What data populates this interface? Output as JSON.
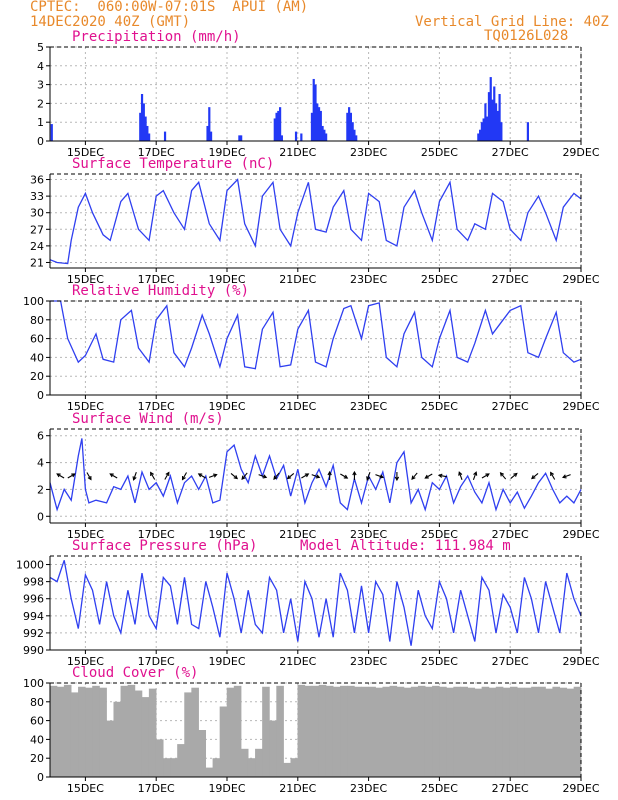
{
  "header": {
    "line1": "CPTEC:  060:00W-07:01S  APUI (AM)",
    "line2": "14DEC2020 40Z (GMT)",
    "right1": "Vertical Grid Line: 40Z",
    "right2": "TQ0126L028"
  },
  "colors": {
    "header": "#e8892b",
    "titles": "#e0118f",
    "series": "#2f3ff0",
    "bars": "#2238f5",
    "cloud": "#a9a9a9",
    "arrows": "#000000"
  },
  "x_axis": {
    "range_days": [
      14.0,
      29.0
    ],
    "tick_labels": [
      "15DEC",
      "17DEC",
      "19DEC",
      "21DEC",
      "23DEC",
      "25DEC",
      "27DEC",
      "29DEC"
    ],
    "tick_days": [
      15,
      17,
      19,
      21,
      23,
      25,
      27,
      29
    ]
  },
  "chart_data": [
    {
      "type": "bar",
      "title": "Precipitation (mm/h)",
      "ylim": [
        0,
        5
      ],
      "yticks": [
        0,
        1,
        2,
        3,
        4,
        5
      ],
      "grid": true,
      "x": [
        14.05,
        16.55,
        16.6,
        16.65,
        16.7,
        16.75,
        16.8,
        17.25,
        18.45,
        18.5,
        18.55,
        19.35,
        19.4,
        20.35,
        20.4,
        20.45,
        20.5,
        20.55,
        20.95,
        21.1,
        21.4,
        21.45,
        21.5,
        21.55,
        21.6,
        21.65,
        21.7,
        21.75,
        21.8,
        22.4,
        22.45,
        22.5,
        22.55,
        22.6,
        22.65,
        26.1,
        26.15,
        26.2,
        26.25,
        26.3,
        26.35,
        26.4,
        26.45,
        26.5,
        26.55,
        26.6,
        26.65,
        26.7,
        26.75,
        27.5
      ],
      "values": [
        0.9,
        1.5,
        2.5,
        2.0,
        1.3,
        0.8,
        0.4,
        0.5,
        0.8,
        1.8,
        0.5,
        0.3,
        0.3,
        1.2,
        1.5,
        1.6,
        1.8,
        0.3,
        0.5,
        0.4,
        1.5,
        3.3,
        3.0,
        2.0,
        1.8,
        1.6,
        0.8,
        0.6,
        0.4,
        1.5,
        1.8,
        1.5,
        1.0,
        0.6,
        0.3,
        0.4,
        0.6,
        1.0,
        1.2,
        2.0,
        1.3,
        2.6,
        3.4,
        2.2,
        2.9,
        2.0,
        1.6,
        2.5,
        1.0,
        1.0
      ]
    },
    {
      "type": "line",
      "title": "Surface Temperature (nC)",
      "ylim": [
        20,
        37
      ],
      "yticks": [
        21,
        24,
        27,
        30,
        33,
        36
      ],
      "grid": true,
      "x": [
        14.0,
        14.2,
        14.5,
        14.6,
        14.8,
        15.0,
        15.2,
        15.5,
        15.7,
        16.0,
        16.2,
        16.5,
        16.8,
        17.0,
        17.2,
        17.5,
        17.8,
        18.0,
        18.2,
        18.5,
        18.8,
        19.0,
        19.3,
        19.5,
        19.8,
        20.0,
        20.3,
        20.5,
        20.8,
        21.0,
        21.3,
        21.5,
        21.8,
        22.0,
        22.3,
        22.5,
        22.8,
        23.0,
        23.3,
        23.5,
        23.8,
        24.0,
        24.3,
        24.5,
        24.8,
        25.0,
        25.3,
        25.5,
        25.8,
        26.0,
        26.3,
        26.5,
        26.8,
        27.0,
        27.3,
        27.5,
        27.8,
        28.0,
        28.3,
        28.5,
        28.8,
        29.0
      ],
      "values": [
        21.5,
        21.0,
        20.8,
        25,
        31,
        33.5,
        30,
        26,
        25,
        32,
        33.5,
        27,
        25,
        33,
        34,
        30,
        27,
        34,
        35.5,
        28,
        25,
        34,
        36,
        28,
        24,
        33,
        35.5,
        27,
        24,
        30,
        35.5,
        27,
        26.5,
        31,
        34,
        27,
        25,
        33.5,
        32,
        25,
        24,
        31,
        34,
        30,
        25,
        32,
        35.5,
        27,
        25,
        28,
        27,
        33.5,
        32,
        27,
        25,
        30,
        33,
        30,
        25,
        31,
        33.5,
        32.5
      ]
    },
    {
      "type": "line",
      "title": "Relative Humidity (%)",
      "ylim": [
        0,
        100
      ],
      "yticks": [
        0,
        20,
        40,
        60,
        80,
        100
      ],
      "grid": true,
      "x": [
        14.0,
        14.3,
        14.5,
        14.8,
        15.0,
        15.3,
        15.5,
        15.8,
        16.0,
        16.3,
        16.5,
        16.8,
        17.0,
        17.3,
        17.5,
        17.8,
        18.0,
        18.3,
        18.5,
        18.8,
        19.0,
        19.3,
        19.5,
        19.8,
        20.0,
        20.3,
        20.5,
        20.8,
        21.0,
        21.3,
        21.5,
        21.8,
        22.0,
        22.3,
        22.5,
        22.8,
        23.0,
        23.3,
        23.5,
        23.8,
        24.0,
        24.3,
        24.5,
        24.8,
        25.0,
        25.3,
        25.5,
        25.8,
        26.0,
        26.3,
        26.5,
        26.8,
        27.0,
        27.3,
        27.5,
        27.8,
        28.0,
        28.3,
        28.5,
        28.8,
        29.0
      ],
      "values": [
        100,
        100,
        60,
        35,
        42,
        65,
        38,
        35,
        80,
        90,
        50,
        35,
        80,
        95,
        45,
        30,
        50,
        85,
        65,
        30,
        60,
        85,
        30,
        28,
        70,
        88,
        30,
        32,
        70,
        90,
        35,
        30,
        60,
        92,
        95,
        60,
        95,
        98,
        40,
        30,
        65,
        88,
        40,
        30,
        60,
        90,
        40,
        35,
        55,
        90,
        65,
        80,
        90,
        95,
        45,
        40,
        60,
        88,
        45,
        35,
        38
      ]
    },
    {
      "type": "line",
      "title": "Surface Wind (m/s)",
      "ylim": [
        -0.5,
        6.5
      ],
      "yticks": [
        0,
        2,
        4,
        6
      ],
      "grid": true,
      "x": [
        14.0,
        14.2,
        14.4,
        14.6,
        14.8,
        14.9,
        15.0,
        15.1,
        15.3,
        15.6,
        15.8,
        16.0,
        16.2,
        16.4,
        16.6,
        16.8,
        17.0,
        17.2,
        17.4,
        17.6,
        17.8,
        18.0,
        18.2,
        18.4,
        18.6,
        18.8,
        19.0,
        19.2,
        19.4,
        19.6,
        19.8,
        20.0,
        20.2,
        20.4,
        20.6,
        20.8,
        21.0,
        21.2,
        21.4,
        21.6,
        21.8,
        22.0,
        22.2,
        22.4,
        22.6,
        22.8,
        23.0,
        23.2,
        23.4,
        23.6,
        23.8,
        24.0,
        24.2,
        24.4,
        24.6,
        24.8,
        25.0,
        25.2,
        25.4,
        25.6,
        25.8,
        26.0,
        26.2,
        26.4,
        26.6,
        26.8,
        27.0,
        27.2,
        27.4,
        27.6,
        27.8,
        28.0,
        28.2,
        28.4,
        28.6,
        28.8,
        29.0
      ],
      "values": [
        2.5,
        0.5,
        2.0,
        1.2,
        4.5,
        5.8,
        2.0,
        1.0,
        1.2,
        1.0,
        2.2,
        2.0,
        3.0,
        1.0,
        3.3,
        2.0,
        2.5,
        1.5,
        3.0,
        1.0,
        2.5,
        3.0,
        2.0,
        3.0,
        1.0,
        1.2,
        4.8,
        5.3,
        3.5,
        2.5,
        4.5,
        3.0,
        4.5,
        2.8,
        3.8,
        1.5,
        3.5,
        1.0,
        2.5,
        3.5,
        2.2,
        3.8,
        1.0,
        0.5,
        2.8,
        1.0,
        3.0,
        2.0,
        3.3,
        1.0,
        4.0,
        4.8,
        1.0,
        2.0,
        0.5,
        2.5,
        2.0,
        3.0,
        1.0,
        2.2,
        3.0,
        1.8,
        1.0,
        2.5,
        0.5,
        2.0,
        1.0,
        1.8,
        0.6,
        1.5,
        2.5,
        3.2,
        2.0,
        1.0,
        1.5,
        1.0,
        2.0
      ]
    },
    {
      "type": "line",
      "title": "Surface Pressure (hPa)",
      "annotation": "Model Altitude: 111.984 m",
      "ylim": [
        990,
        1001
      ],
      "yticks": [
        990,
        992,
        994,
        996,
        998,
        1000
      ],
      "grid": true,
      "x": [
        14.0,
        14.2,
        14.4,
        14.6,
        14.8,
        15.0,
        15.2,
        15.4,
        15.6,
        15.8,
        16.0,
        16.2,
        16.4,
        16.6,
        16.8,
        17.0,
        17.2,
        17.4,
        17.6,
        17.8,
        18.0,
        18.2,
        18.4,
        18.6,
        18.8,
        19.0,
        19.2,
        19.4,
        19.6,
        19.8,
        20.0,
        20.2,
        20.4,
        20.6,
        20.8,
        21.0,
        21.2,
        21.4,
        21.6,
        21.8,
        22.0,
        22.2,
        22.4,
        22.6,
        22.8,
        23.0,
        23.2,
        23.4,
        23.6,
        23.8,
        24.0,
        24.2,
        24.4,
        24.6,
        24.8,
        25.0,
        25.2,
        25.4,
        25.6,
        25.8,
        26.0,
        26.2,
        26.4,
        26.6,
        26.8,
        27.0,
        27.2,
        27.4,
        27.6,
        27.8,
        28.0,
        28.2,
        28.4,
        28.6,
        28.8,
        29.0
      ],
      "values": [
        998.5,
        998,
        1000.5,
        996,
        992.5,
        998.8,
        997,
        993,
        998,
        994,
        992,
        997,
        993,
        999,
        994,
        992.5,
        998.5,
        997.5,
        993,
        998.5,
        993,
        992.5,
        998,
        995,
        991.5,
        999,
        996,
        992,
        997,
        993,
        992,
        998.5,
        997,
        992,
        996,
        991,
        998,
        996,
        991.5,
        996,
        991.5,
        999,
        997,
        992,
        997.5,
        992,
        998,
        996.5,
        991,
        998,
        995,
        990.5,
        997,
        994,
        992.5,
        998,
        996,
        992,
        997,
        994,
        991,
        998.5,
        997,
        992,
        996.5,
        995,
        992,
        998.5,
        996,
        992,
        998,
        995,
        992,
        999,
        996,
        994
      ]
    },
    {
      "type": "bar",
      "title": "Cloud Cover (%)",
      "ylim": [
        0,
        100
      ],
      "yticks": [
        0,
        20,
        40,
        60,
        80,
        100
      ],
      "grid": true,
      "x": [
        14.1,
        14.3,
        14.5,
        14.7,
        14.9,
        15.1,
        15.3,
        15.5,
        15.7,
        15.9,
        16.1,
        16.3,
        16.5,
        16.7,
        16.9,
        17.1,
        17.3,
        17.5,
        17.7,
        17.9,
        18.1,
        18.3,
        18.5,
        18.7,
        18.9,
        19.1,
        19.3,
        19.5,
        19.7,
        19.9,
        20.1,
        20.3,
        20.5,
        20.7,
        20.9,
        21.1,
        21.3,
        21.5,
        21.7,
        21.9,
        22.1,
        22.3,
        22.5,
        22.7,
        22.9,
        23.1,
        23.3,
        23.5,
        23.7,
        23.9,
        24.1,
        24.3,
        24.5,
        24.7,
        24.9,
        25.1,
        25.3,
        25.5,
        25.7,
        25.9,
        26.1,
        26.3,
        26.5,
        26.7,
        26.9,
        27.1,
        27.3,
        27.5,
        27.7,
        27.9,
        28.1,
        28.3,
        28.5,
        28.7,
        28.9
      ],
      "values": [
        97,
        96,
        98,
        90,
        96,
        95,
        97,
        95,
        60,
        80,
        97,
        98,
        92,
        85,
        94,
        40,
        20,
        20,
        35,
        90,
        95,
        50,
        10,
        20,
        75,
        95,
        97,
        30,
        20,
        30,
        96,
        60,
        97,
        15,
        20,
        98,
        97,
        97,
        98,
        97,
        96,
        97,
        97,
        96,
        96,
        96,
        95,
        96,
        97,
        96,
        95,
        96,
        97,
        96,
        97,
        96,
        95,
        96,
        96,
        95,
        94,
        96,
        95,
        96,
        95,
        96,
        95,
        95,
        96,
        96,
        94,
        96,
        95,
        94,
        96
      ]
    }
  ],
  "wind_arrows": {
    "description_units": "direction_deg (toward, 0=up)",
    "x": [
      14.3,
      14.6,
      15.1,
      15.8,
      16.4,
      16.9,
      17.3,
      17.8,
      18.3,
      18.6,
      19.2,
      19.5,
      20.0,
      20.4,
      20.8,
      21.2,
      21.5,
      21.9,
      22.3,
      22.6,
      23.0,
      23.3,
      23.8,
      24.3,
      24.7,
      25.1,
      25.6,
      26.0,
      26.3,
      26.8,
      27.1,
      27.7,
      28.2,
      28.6
    ],
    "direction_deg": [
      300,
      60,
      150,
      300,
      200,
      330,
      30,
      210,
      300,
      70,
      130,
      220,
      110,
      220,
      230,
      60,
      110,
      0,
      120,
      0,
      200,
      110,
      180,
      220,
      240,
      280,
      340,
      20,
      60,
      320,
      50,
      230,
      330,
      250
    ]
  }
}
